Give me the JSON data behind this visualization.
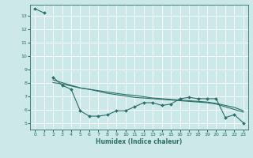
{
  "xlabel": "Humidex (Indice chaleur)",
  "background_color": "#cce8e8",
  "grid_color": "#ffffff",
  "line_color": "#2a7068",
  "xlim": [
    -0.5,
    23.5
  ],
  "ylim": [
    4.5,
    13.8
  ],
  "yticks": [
    5,
    6,
    7,
    8,
    9,
    10,
    11,
    12,
    13
  ],
  "xticks": [
    0,
    1,
    2,
    3,
    4,
    5,
    6,
    7,
    8,
    9,
    10,
    11,
    12,
    13,
    14,
    15,
    16,
    17,
    18,
    19,
    20,
    21,
    22,
    23
  ],
  "series": [
    {
      "x": [
        0,
        1
      ],
      "y": [
        13.5,
        13.2
      ],
      "markers": true
    },
    {
      "x": [
        2,
        3,
        4,
        5,
        6,
        7,
        8,
        9,
        10,
        11,
        12,
        13,
        14,
        15,
        16,
        17,
        18,
        19,
        20,
        21,
        22,
        23
      ],
      "y": [
        8.4,
        7.8,
        7.5,
        5.9,
        5.5,
        5.5,
        5.6,
        5.9,
        5.9,
        6.2,
        6.5,
        6.5,
        6.3,
        6.4,
        6.8,
        6.9,
        6.8,
        6.8,
        6.8,
        5.4,
        5.6,
        5.0
      ],
      "markers": true
    },
    {
      "x": [
        2,
        3,
        4,
        5,
        6,
        7,
        8,
        9,
        10,
        11,
        12,
        13,
        14,
        15,
        16,
        17,
        18,
        19,
        20,
        21,
        22,
        23
      ],
      "y": [
        8.2,
        8.0,
        7.8,
        7.6,
        7.5,
        7.35,
        7.2,
        7.1,
        7.0,
        6.9,
        6.85,
        6.8,
        6.75,
        6.7,
        6.65,
        6.6,
        6.55,
        6.5,
        6.4,
        6.2,
        6.0,
        5.8
      ],
      "markers": false
    },
    {
      "x": [
        2,
        3,
        4,
        5,
        6,
        7,
        8,
        9,
        10,
        11,
        12,
        13,
        14,
        15,
        16,
        17,
        18,
        19,
        20,
        21,
        22,
        23
      ],
      "y": [
        8.0,
        7.9,
        7.75,
        7.6,
        7.5,
        7.4,
        7.3,
        7.2,
        7.1,
        7.05,
        6.95,
        6.85,
        6.8,
        6.75,
        6.7,
        6.65,
        6.6,
        6.55,
        6.45,
        6.3,
        6.15,
        5.9
      ],
      "markers": false
    }
  ]
}
